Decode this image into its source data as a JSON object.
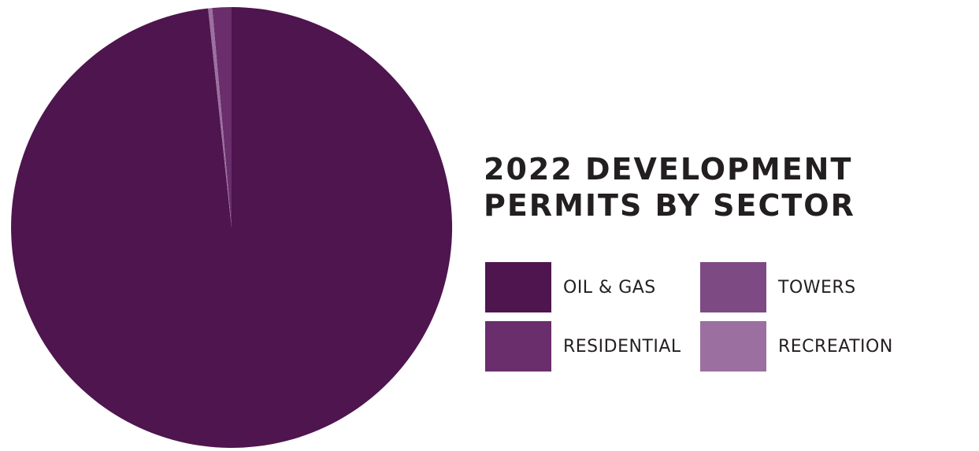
{
  "chart_data": {
    "type": "pie",
    "title": "2022 DEVELOPMENT PERMITS BY SECTOR",
    "categories": [
      "OIL & GAS",
      "TOWERS",
      "RESIDENTIAL",
      "RECREATION"
    ],
    "values": [
      98.3,
      0.0,
      1.4,
      0.3
    ],
    "colors": [
      "#4e154f",
      "#7d4a84",
      "#6a2e6c",
      "#9b6f9f"
    ],
    "legend": "right"
  }
}
